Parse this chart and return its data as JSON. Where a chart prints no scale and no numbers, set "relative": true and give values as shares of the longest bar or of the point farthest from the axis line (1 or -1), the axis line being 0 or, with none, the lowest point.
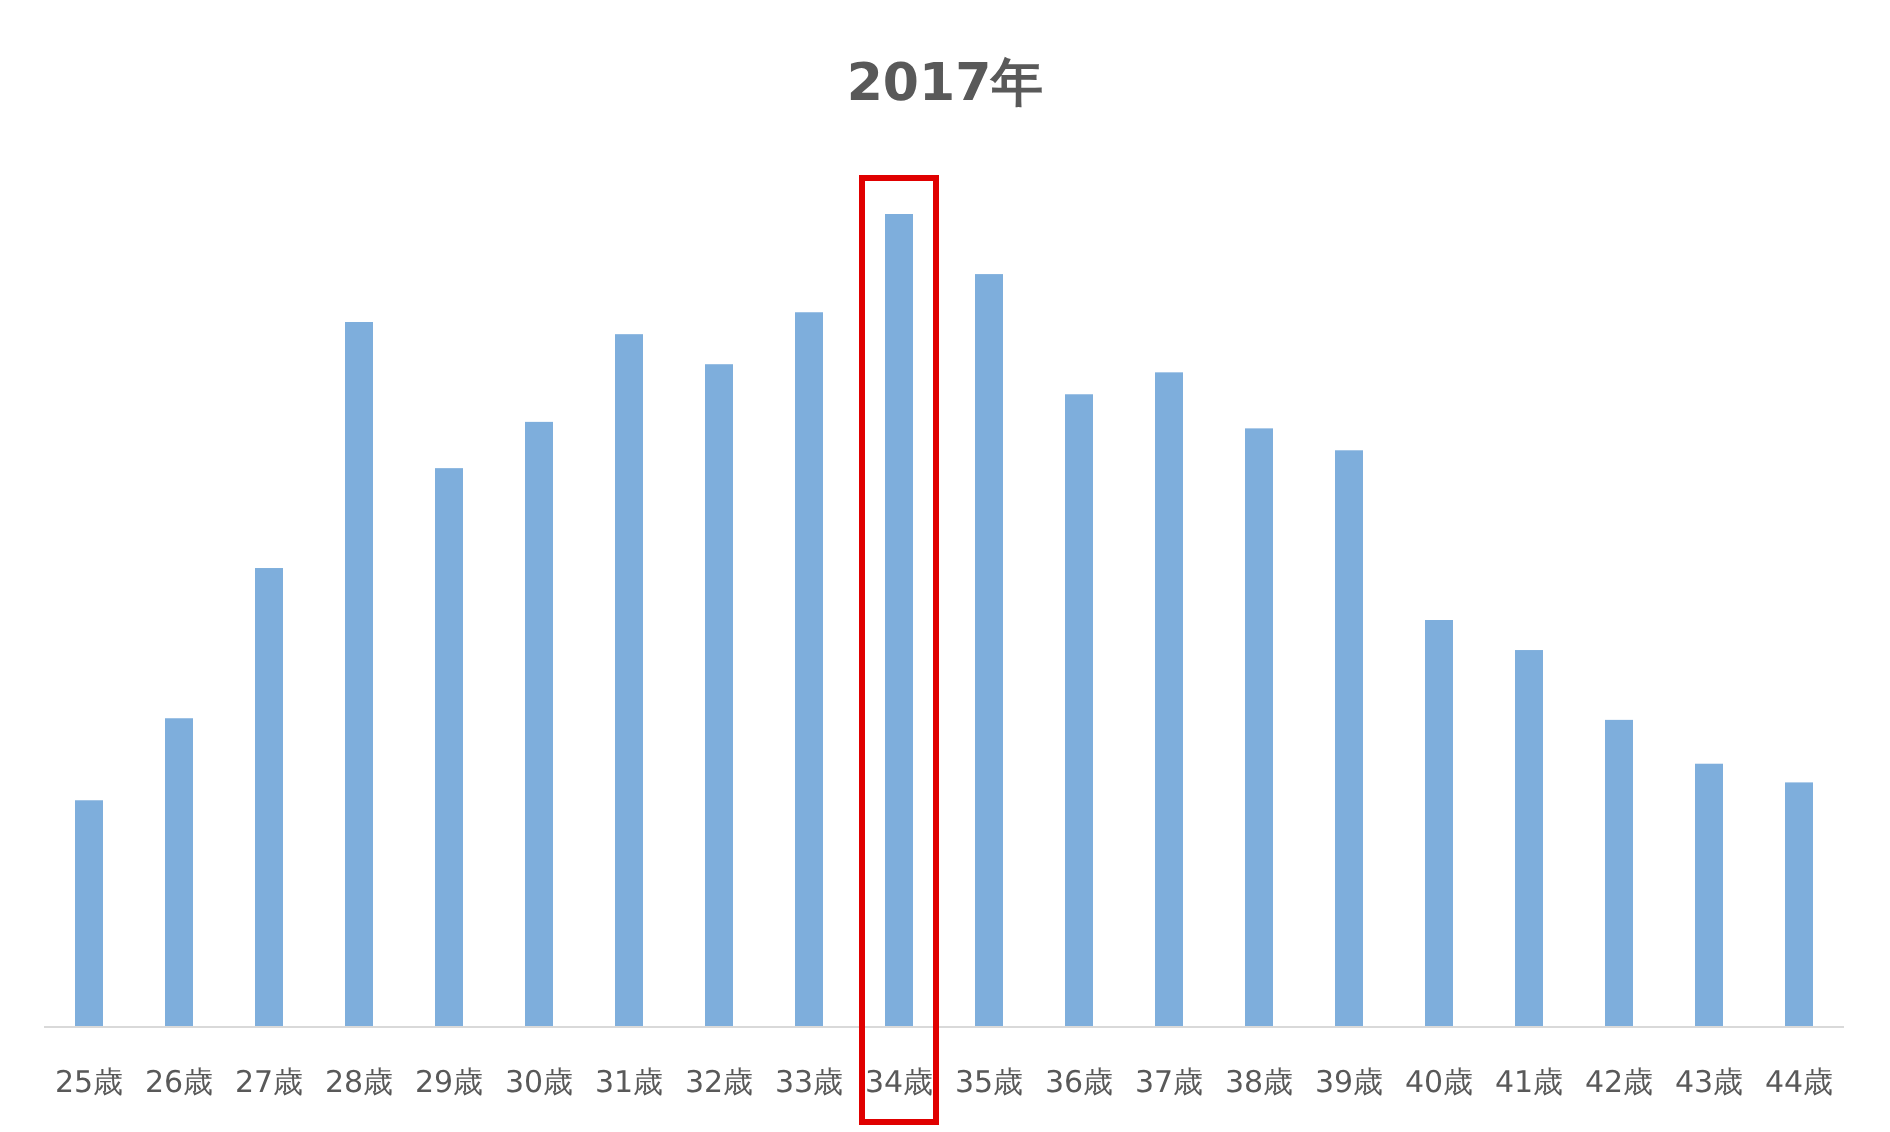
{
  "chart_data": {
    "type": "bar",
    "title": "2017年",
    "relative": true,
    "categories": [
      "25歳",
      "26歳",
      "27歳",
      "28歳",
      "29歳",
      "30歳",
      "31歳",
      "32歳",
      "33歳",
      "34歳",
      "35歳",
      "36歳",
      "37歳",
      "38歳",
      "39歳",
      "40歳",
      "41歳",
      "42歳",
      "43歳",
      "44歳"
    ],
    "color": "#7eaedc",
    "values": [
      0.278,
      0.379,
      0.564,
      0.867,
      0.687,
      0.744,
      0.852,
      0.815,
      0.879,
      1,
      0.926,
      0.778,
      0.805,
      0.736,
      0.709,
      0.5,
      0.463,
      0.377,
      0.323,
      0.3
    ]
  }
}
